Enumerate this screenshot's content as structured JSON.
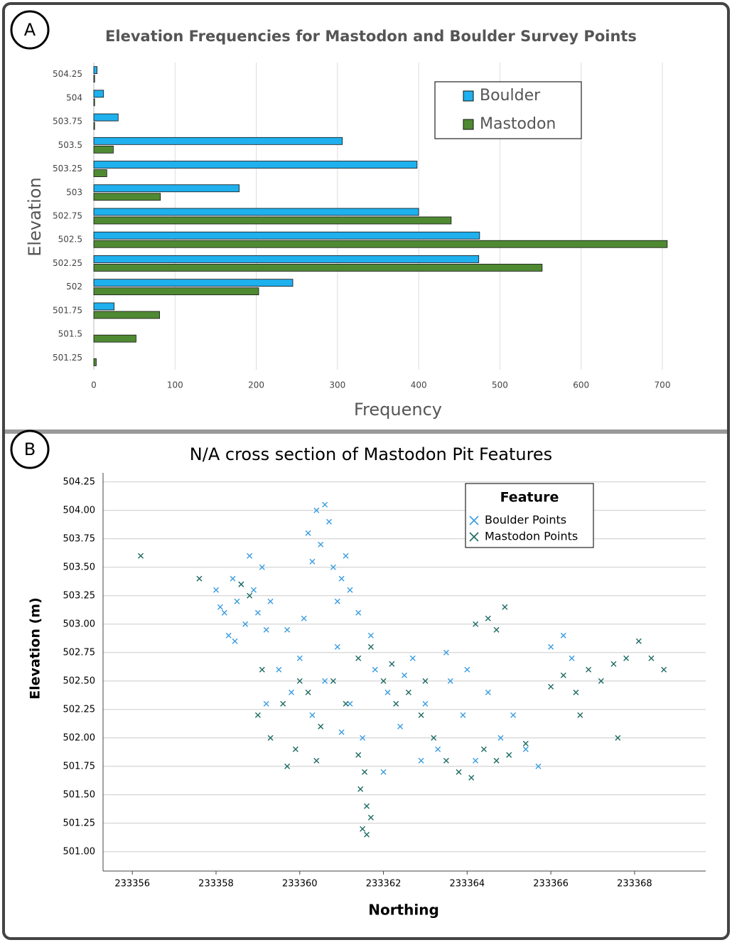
{
  "panels": [
    "A",
    "B"
  ],
  "chart_data": [
    {
      "type": "bar",
      "orientation": "horizontal",
      "title": "Elevation Frequencies for Mastodon and Boulder Survey Points",
      "x_label": "Frequency",
      "y_label": "Elevation",
      "categories": [
        "504.25",
        "504",
        "503.75",
        "503.5",
        "503.25",
        "503",
        "502.75",
        "502.5",
        "502.25",
        "502",
        "501.75",
        "501.5",
        "501.25"
      ],
      "series": [
        {
          "name": "Boulder",
          "color": "#1fb0ee",
          "values": [
            4,
            12,
            30,
            306,
            398,
            179,
            400,
            475,
            474,
            245,
            25,
            0,
            0
          ]
        },
        {
          "name": "Mastodon",
          "color": "#4f8a33",
          "values": [
            1,
            1,
            1,
            24,
            16,
            82,
            440,
            706,
            552,
            203,
            81,
            52,
            3
          ]
        }
      ],
      "xlim": [
        0,
        700
      ],
      "xticks": [
        0,
        100,
        200,
        300,
        400,
        500,
        600,
        700
      ],
      "grid": true,
      "legend": "upper right"
    },
    {
      "type": "scatter",
      "title": "N/A cross section of Mastodon Pit Features",
      "x_label": "Northing",
      "y_label": "Elevation (m)",
      "legend_title": "Feature",
      "xlim": [
        233355.3,
        233369.7
      ],
      "xticks": [
        233356,
        233358,
        233360,
        233362,
        233364,
        233366,
        233368
      ],
      "ylim": [
        500.83,
        504.33
      ],
      "yticks": [
        {
          "value": 501,
          "label": "501.00"
        },
        501.25,
        {
          "value": 501.5,
          "label": "501.50"
        },
        501.75,
        {
          "value": 502,
          "label": "502.00"
        },
        502.25,
        {
          "value": 502.5,
          "label": "502.50"
        },
        502.75,
        {
          "value": 503,
          "label": "503.00"
        },
        503.25,
        {
          "value": 503.5,
          "label": "503.50"
        },
        503.75,
        {
          "value": 504,
          "label": "504.00"
        },
        504.25
      ],
      "grid": true,
      "legend": "upper right",
      "series": [
        {
          "name": "Boulder Points",
          "color": "#3a9de0",
          "x": [
            233358.0,
            233358.2,
            233358.4,
            233358.5,
            233358.7,
            233358.9,
            233359.1,
            233359.3,
            233358.3,
            233358.8,
            233359.2,
            233358.6,
            233358.1,
            233359.0,
            233358.45,
            233360.2,
            233360.4,
            233360.6,
            233360.5,
            233360.8,
            233361.0,
            233361.2,
            233360.9,
            233361.4,
            233360.3,
            233361.1,
            233360.7,
            233359.5,
            233359.8,
            233360.0,
            233360.3,
            233360.6,
            233360.9,
            233361.2,
            233361.5,
            233361.8,
            233362.1,
            233362.4,
            233362.7,
            233363.0,
            233363.3,
            233363.6,
            233363.9,
            233364.2,
            233364.5,
            233364.8,
            233365.1,
            233365.4,
            233365.7,
            233366.0,
            233366.3,
            233359.7,
            233360.1,
            233361.7,
            233362.0,
            233362.9,
            233363.5,
            233366.5,
            233359.2,
            233361.0,
            233362.5,
            233364.0
          ],
          "values": [
            503.3,
            503.1,
            503.4,
            503.2,
            503.0,
            503.3,
            503.5,
            503.2,
            502.9,
            503.6,
            502.95,
            503.35,
            503.15,
            503.1,
            502.85,
            503.8,
            504.0,
            504.05,
            503.7,
            503.5,
            503.4,
            503.3,
            503.2,
            503.1,
            503.55,
            503.6,
            503.9,
            502.6,
            502.4,
            502.7,
            502.2,
            502.5,
            502.8,
            502.3,
            502.0,
            502.6,
            502.4,
            502.1,
            502.7,
            502.3,
            501.9,
            502.5,
            502.2,
            501.8,
            502.4,
            502.0,
            502.2,
            501.9,
            501.75,
            502.8,
            502.9,
            502.95,
            503.05,
            502.9,
            501.7,
            501.8,
            502.75,
            502.7,
            502.3,
            502.05,
            502.55,
            502.6
          ]
        },
        {
          "name": "Mastodon Points",
          "color": "#1d6b62",
          "x": [
            233356.2,
            233357.6,
            233358.6,
            233358.8,
            233359.0,
            233359.3,
            233359.6,
            233359.9,
            233360.2,
            233360.5,
            233360.8,
            233361.1,
            233361.4,
            233361.7,
            233362.0,
            233362.3,
            233362.6,
            233362.9,
            233363.2,
            233363.5,
            233363.8,
            233364.1,
            233364.4,
            233364.7,
            233365.0,
            233361.5,
            233361.6,
            233361.45,
            233361.7,
            233361.55,
            233361.6,
            233361.4,
            233364.2,
            233364.5,
            233364.7,
            233364.9,
            233366.0,
            233366.3,
            233366.6,
            233366.9,
            233367.2,
            233367.5,
            233367.8,
            233368.1,
            233368.4,
            233368.7,
            233367.6,
            233366.7,
            233365.4,
            233359.1,
            233360.0,
            233359.7,
            233360.4,
            233363.0,
            233362.2
          ],
          "values": [
            503.6,
            503.4,
            503.35,
            503.25,
            502.2,
            502.0,
            502.3,
            501.9,
            502.4,
            502.1,
            502.5,
            502.3,
            502.7,
            502.8,
            502.5,
            502.3,
            502.4,
            502.2,
            502.0,
            501.8,
            501.7,
            501.65,
            501.9,
            501.8,
            501.85,
            501.2,
            501.4,
            501.55,
            501.3,
            501.7,
            501.15,
            501.85,
            503.0,
            503.05,
            502.95,
            503.15,
            502.45,
            502.55,
            502.4,
            502.6,
            502.5,
            502.65,
            502.7,
            502.85,
            502.7,
            502.6,
            502.0,
            502.2,
            501.95,
            502.6,
            502.5,
            501.75,
            501.8,
            502.5,
            502.65
          ]
        }
      ]
    }
  ]
}
